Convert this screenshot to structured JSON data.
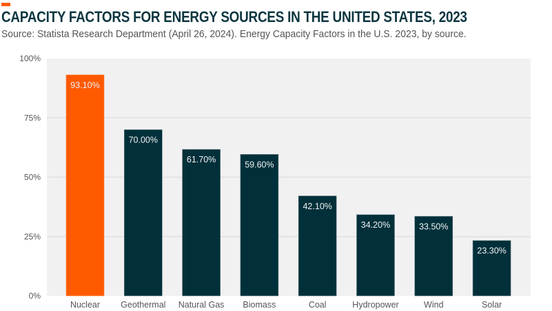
{
  "header": {
    "title": "CAPACITY FACTORS FOR ENERGY SOURCES IN THE UNITED STATES, 2023",
    "subtitle": "Source: Statista Research Department (April 26, 2024). Energy Capacity Factors in the U.S. 2023, by source."
  },
  "colors": {
    "highlight": "#ff5a00",
    "bar": "#02303a",
    "plot_background": "#f1f1f1",
    "gridline": "#e0e0e0",
    "title": "#0c3640"
  },
  "chart_data": {
    "type": "bar",
    "title": "CAPACITY FACTORS FOR ENERGY SOURCES IN THE UNITED STATES, 2023",
    "subtitle": "Source: Statista Research Department (April 26, 2024). Energy Capacity Factors in the U.S. 2023, by source.",
    "xlabel": "",
    "ylabel": "",
    "categories": [
      "Nuclear",
      "Geothermal",
      "Natural Gas",
      "Biomass",
      "Coal",
      "Hydropower",
      "Wind",
      "Solar"
    ],
    "values": [
      93.1,
      70.0,
      61.7,
      59.6,
      42.1,
      34.2,
      33.5,
      23.3
    ],
    "value_labels": [
      "93.10%",
      "70.00%",
      "61.70%",
      "59.60%",
      "42.10%",
      "34.20%",
      "33.50%",
      "23.30%"
    ],
    "highlighted": [
      "Nuclear"
    ],
    "ylim": [
      0,
      100
    ],
    "yticks": [
      0,
      25,
      50,
      75,
      100
    ],
    "ytick_labels": [
      "0%",
      "25%",
      "50%",
      "75%",
      "100%"
    ],
    "grid": true,
    "legend": "none"
  }
}
